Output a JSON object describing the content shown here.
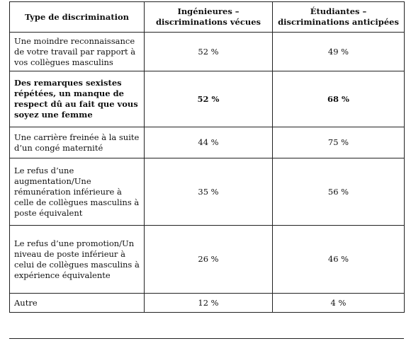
{
  "table": {
    "headers": [
      "Type de discrimination",
      "Ingénieures – discriminations vécues",
      "Étudiantes – discriminations anticipées"
    ],
    "rows": [
      {
        "type": "Une moindre reconnaissance de votre travail par rapport à vos collègues masculins",
        "ingenieures": "52 %",
        "etudiantes": "49 %"
      },
      {
        "type": "Des remarques sexistes répétées, un manque de respect dû au fait que vous soyez une femme",
        "ingenieures": "52 %",
        "etudiantes": "68 %"
      },
      {
        "type": "Une carrière freinée à la suite d’un congé maternité",
        "ingenieures": "44 %",
        "etudiantes": "75 %"
      },
      {
        "type": "Le refus d’une augmentation/Une rémunération inférieure à celle de collègues masculins à poste équivalent",
        "ingenieures": "35 %",
        "etudiantes": "56 %"
      },
      {
        "type": "Le refus d’une promotion/Un niveau de poste inférieur à celui de collègues masculins à expérience équivalente",
        "ingenieures": "26 %",
        "etudiantes": "46 %"
      },
      {
        "type": "Autre",
        "ingenieures": "12 %",
        "etudiantes": "4 %"
      }
    ]
  }
}
